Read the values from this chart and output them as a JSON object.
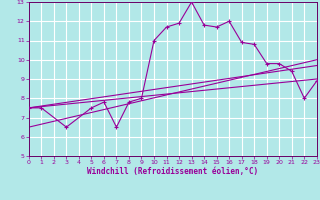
{
  "xlabel": "Windchill (Refroidissement éolien,°C)",
  "background_color": "#b2e8e8",
  "grid_color": "#ffffff",
  "line_color": "#990099",
  "spine_color": "#660066",
  "xlim": [
    0,
    23
  ],
  "ylim": [
    5,
    13
  ],
  "xticks": [
    0,
    1,
    2,
    3,
    4,
    5,
    6,
    7,
    8,
    9,
    10,
    11,
    12,
    13,
    14,
    15,
    16,
    17,
    18,
    19,
    20,
    21,
    22,
    23
  ],
  "yticks": [
    5,
    6,
    7,
    8,
    9,
    10,
    11,
    12,
    13
  ],
  "main_line_x": [
    0,
    1,
    3,
    5,
    6,
    7,
    8,
    9,
    10,
    11,
    12,
    13,
    14,
    15,
    16,
    17,
    18,
    19,
    20,
    21,
    22,
    23
  ],
  "main_line_y": [
    7.5,
    7.5,
    6.5,
    7.5,
    7.8,
    6.5,
    7.8,
    8.0,
    11.0,
    11.7,
    11.9,
    13.0,
    11.8,
    11.7,
    12.0,
    10.9,
    10.8,
    9.8,
    9.8,
    9.4,
    8.0,
    8.9
  ],
  "trend_line1_x": [
    0,
    23
  ],
  "trend_line1_y": [
    7.5,
    9.0
  ],
  "trend_line2_x": [
    0,
    23
  ],
  "trend_line2_y": [
    7.5,
    9.7
  ],
  "trend_line3_x": [
    0,
    23
  ],
  "trend_line3_y": [
    6.5,
    10.0
  ],
  "xlabel_fontsize": 5.5,
  "tick_fontsize": 4.5,
  "line_width": 0.8,
  "marker_size": 3.0
}
